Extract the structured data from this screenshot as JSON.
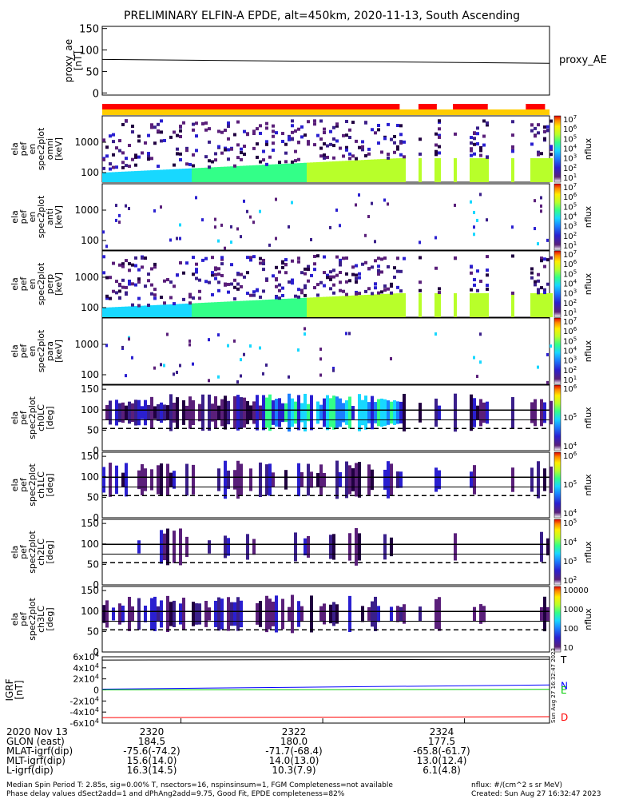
{
  "title": "PRELIMINARY ELFIN-A EPDE, alt=450km, 2020-11-13, South Ascending",
  "colors": {
    "status_red": "#ff0000",
    "status_yellow": "#ffcc00",
    "line": "#000000",
    "bx": "#0000ff",
    "by": "#00cc00",
    "bz": "#ff0000"
  },
  "chart_data": [
    {
      "type": "line",
      "panel": "proxy_ae",
      "ylabel": "proxy_ae [nT]",
      "series": [
        {
          "name": "proxy_AE",
          "x": [
            0,
            1
          ],
          "values": [
            78,
            69
          ]
        }
      ],
      "ylim": [
        -5,
        155
      ],
      "yticks": [
        0,
        50,
        100,
        150
      ]
    },
    {
      "type": "bar",
      "panel": "status",
      "segments": [
        {
          "color": "red",
          "x0": 0.0,
          "x1": 0.665
        },
        {
          "color": "red",
          "x0": 0.707,
          "x1": 0.748
        },
        {
          "color": "red",
          "x0": 0.784,
          "x1": 0.862
        },
        {
          "color": "red",
          "x0": 0.947,
          "x1": 0.99
        }
      ]
    },
    {
      "type": "heatmap",
      "panel": "ela pef en spec2plot omni [keV]",
      "ylabel_lines": [
        "ela",
        "pef",
        "en",
        "spec2plot",
        "omni",
        "[keV]"
      ],
      "yticks": [
        "100",
        "1000"
      ],
      "colorbar": {
        "label": "nflux",
        "ticks": [
          "10^1",
          "10^2",
          "10^3",
          "10^4",
          "10^5",
          "10^6",
          "10^7"
        ]
      }
    },
    {
      "type": "heatmap",
      "panel": "ela pef en spec2plot anti [keV]",
      "ylabel_lines": [
        "ela",
        "pef",
        "en",
        "spec2plot",
        "anti",
        "[keV]"
      ],
      "yticks": [
        "100",
        "1000"
      ],
      "colorbar": {
        "label": "nflux",
        "ticks": [
          "10^1",
          "10^2",
          "10^3",
          "10^4",
          "10^5",
          "10^6",
          "10^7"
        ]
      }
    },
    {
      "type": "heatmap",
      "panel": "ela pef en spec2plot perp [keV]",
      "ylabel_lines": [
        "ela",
        "pef",
        "en",
        "spec2plot",
        "perp",
        "[keV]"
      ],
      "yticks": [
        "100",
        "1000"
      ],
      "colorbar": {
        "label": "nflux",
        "ticks": [
          "10^1",
          "10^2",
          "10^3",
          "10^4",
          "10^5",
          "10^6",
          "10^7"
        ]
      }
    },
    {
      "type": "heatmap",
      "panel": "ela pef en spec2plot para [keV]",
      "ylabel_lines": [
        "ela",
        "pef",
        "en",
        "spec2plot",
        "para",
        "[keV]"
      ],
      "yticks": [
        "100",
        "1000"
      ],
      "colorbar": {
        "label": "nflux",
        "ticks": [
          "10^1",
          "10^2",
          "10^3",
          "10^4",
          "10^5",
          "10^6",
          "10^7"
        ]
      }
    },
    {
      "type": "heatmap",
      "panel": "ela pef spec2plot ch0LC [deg]",
      "ylabel_lines": [
        "ela",
        "pef",
        "spec2plot",
        "ch0LC",
        "[deg]"
      ],
      "yticks": [
        "0",
        "50",
        "100",
        "150"
      ],
      "colorbar": {
        "label": "nflux",
        "ticks": [
          "10^4",
          "10^5",
          "10^6"
        ]
      }
    },
    {
      "type": "heatmap",
      "panel": "ela pef spec2plot ch1LC [deg]",
      "ylabel_lines": [
        "ela",
        "pef",
        "spec2plot",
        "ch1LC",
        "[deg]"
      ],
      "yticks": [
        "0",
        "50",
        "100",
        "150"
      ],
      "colorbar": {
        "label": "nflux",
        "ticks": [
          "10^4",
          "10^5",
          "10^6"
        ]
      }
    },
    {
      "type": "heatmap",
      "panel": "ela pef spec2plot ch2LC [deg]",
      "ylabel_lines": [
        "ela",
        "pef",
        "spec2plot",
        "ch2LC",
        "[deg]"
      ],
      "yticks": [
        "0",
        "50",
        "100",
        "150"
      ],
      "colorbar": {
        "label": "nflux",
        "ticks": [
          "10^2",
          "10^3",
          "10^4",
          "10^5"
        ]
      }
    },
    {
      "type": "heatmap",
      "panel": "ela pef spec2plot ch3LC [deg]",
      "ylabel_lines": [
        "ela",
        "pef",
        "spec2plot",
        "ch3LC",
        "[deg]"
      ],
      "yticks": [
        "0",
        "50",
        "100",
        "150"
      ],
      "colorbar": {
        "label": "nflux",
        "ticks": [
          "10",
          "100",
          "1000",
          "10000"
        ]
      }
    },
    {
      "type": "line",
      "panel": "IGRF [nT]",
      "ylabel": "IGRF [nT]",
      "yticks": [
        "6x10^4",
        "4x10^4",
        "2x10^4",
        "0",
        "-2x10^4",
        "-4x10^4",
        "-6x10^4"
      ],
      "ylim": [
        -60000,
        60000
      ],
      "series": [
        {
          "name": "T",
          "values": [
            54000,
            55500
          ]
        },
        {
          "name": "N",
          "values": [
            1500,
            9000
          ]
        },
        {
          "name": "E",
          "values": [
            200,
            1000
          ]
        },
        {
          "name": "D",
          "values": [
            -50000,
            -48500
          ]
        }
      ]
    }
  ],
  "time_axis": {
    "labels": [
      [
        "2320",
        0.176
      ],
      [
        "2322",
        0.493
      ],
      [
        "2324",
        0.81
      ]
    ],
    "rows": [
      {
        "label": "2020 Nov 13",
        "values": [
          "2320",
          "2322",
          "2324"
        ]
      },
      {
        "label": "GLON (east)",
        "values": [
          "184.5",
          "180.0",
          "177.5"
        ]
      },
      {
        "label": "MLAT-igrf(dip)",
        "values": [
          "-75.6(-74.2)",
          "-71.7(-68.4)",
          "-65.8(-61.7)"
        ]
      },
      {
        "label": "MLT-igrf(dip)",
        "values": [
          "15.6(14.0)",
          "14.0(13.0)",
          "13.0(12.4)"
        ]
      },
      {
        "label": "L-igrf(dip)",
        "values": [
          "16.3(14.5)",
          "10.3(7.9)",
          "6.1(4.8)"
        ]
      }
    ]
  },
  "footer": {
    "line1": "Median Spin Period T: 2.85s, sig=0.00% T, nsectors=16, nspinsinsum=1, FGM Completeness=not available",
    "line2": "Phase delay values dSect2add=1 and dPhAng2add=9.75, Good Fit, EPDE completeness=82%",
    "units": "nflux: #/(cm^2 s sr MeV)",
    "created": "Created: Sun Aug 27 16:32:47 2023",
    "side_stamp": "Sun Aug 27 16:32:47 2023"
  }
}
